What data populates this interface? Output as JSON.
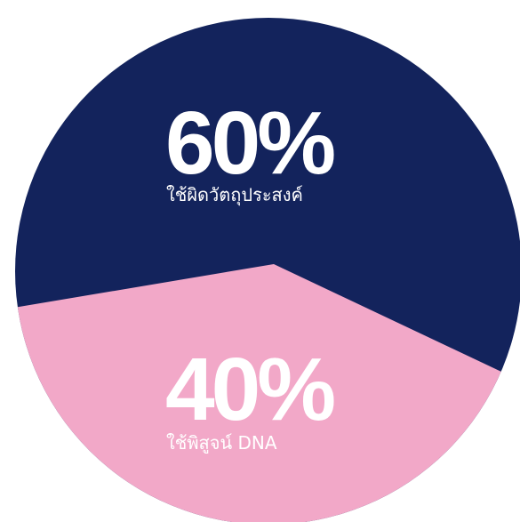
{
  "chart_data": {
    "type": "pie",
    "slices": [
      {
        "label": "ใช้ผิดวัตถุประสงค์",
        "value": 60,
        "value_label": "60%",
        "color": "#13235c"
      },
      {
        "label": "ใช้พิสูจน์ DNA",
        "value": 40,
        "value_label": "40%",
        "color": "#f2a8c8"
      }
    ],
    "legend": "none"
  }
}
